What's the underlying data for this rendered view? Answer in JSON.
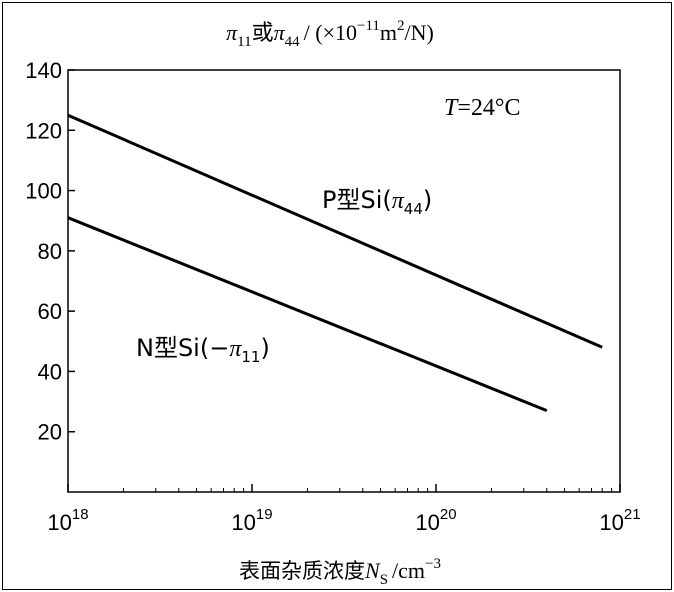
{
  "chart_data": {
    "type": "line",
    "title_parts": {
      "sym1": "π",
      "sub1": "11",
      "or": "或",
      "sym2": "π",
      "sub2": "44",
      "slash": "/ (×10",
      "exp": "−11",
      "unit": "m",
      "unit_exp": "2",
      "unit_tail": "/N)"
    },
    "xlabel_parts": {
      "text": "表面杂质浓度",
      "var": "N",
      "sub": "S",
      "unit": "/cm",
      "exp": "−3"
    },
    "x_scale": "log",
    "xlim": [
      1e+18,
      1e+21
    ],
    "ylim": [
      0,
      140
    ],
    "x_ticks": [
      {
        "value": 1e+18,
        "base": "10",
        "exp": "18"
      },
      {
        "value": 1e+19,
        "base": "10",
        "exp": "19"
      },
      {
        "value": 1e+20,
        "base": "10",
        "exp": "20"
      },
      {
        "value": 1e+21,
        "base": "10",
        "exp": "21"
      }
    ],
    "y_ticks": [
      20,
      40,
      60,
      80,
      100,
      120,
      140
    ],
    "grid": false,
    "annotation": {
      "var": "T",
      "text": "=24°C"
    },
    "series": [
      {
        "name": "P型Si(π44)",
        "label_parts": {
          "pre": "P型Si(",
          "sym": "π",
          "sub": "44",
          "post": ")"
        },
        "x": [
          1e+18,
          8e+20
        ],
        "y": [
          125,
          48
        ],
        "color": "#000000"
      },
      {
        "name": "N型Si(−π11)",
        "label_parts": {
          "pre": "N型Si(−",
          "sym": "π",
          "sub": "11",
          "post": ")"
        },
        "x": [
          1e+18,
          4e+20
        ],
        "y": [
          91,
          27
        ],
        "color": "#000000"
      }
    ]
  }
}
